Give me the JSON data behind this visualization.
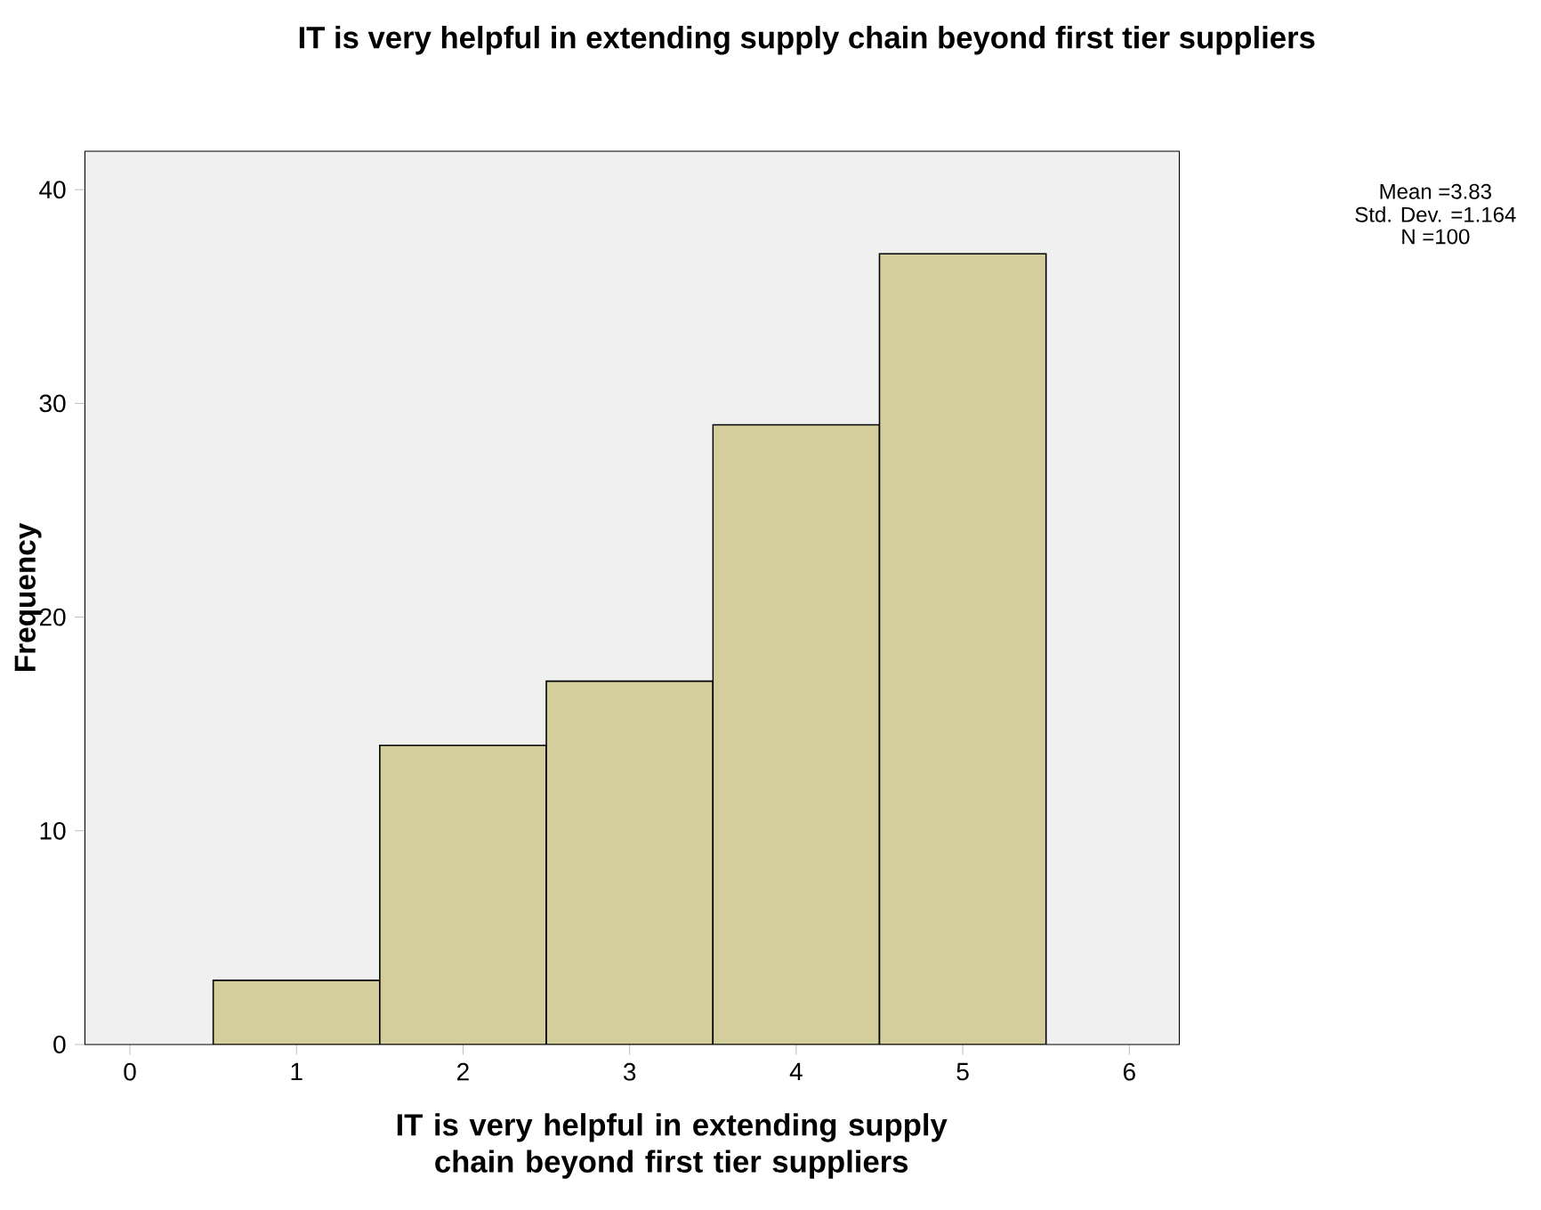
{
  "chart_data": {
    "type": "histogram",
    "title": "IT is very helpful in extending supply chain beyond first tier suppliers",
    "xlabel": "IT is very helpful in extending supply chain beyond first tier suppliers",
    "ylabel": "Frequency",
    "bins": [
      0.5,
      1.5,
      2.5,
      3.5,
      4.5,
      5.5
    ],
    "values": [
      3,
      14,
      17,
      29,
      37
    ],
    "color": "#d3ce9b",
    "xlim": [
      -0.27,
      6.3
    ],
    "ylim": [
      0,
      41.8
    ],
    "xticks": [
      0,
      1,
      2,
      3,
      4,
      5,
      6
    ],
    "yticks": [
      0,
      10,
      20,
      30,
      40
    ],
    "grid": false,
    "annotations": [
      "Mean =3.83",
      "Std. Dev. =1.164",
      "N =100"
    ]
  }
}
